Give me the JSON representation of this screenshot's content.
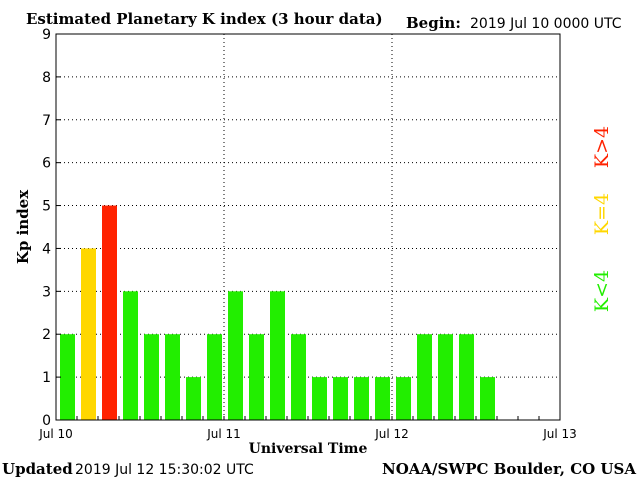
{
  "header": {
    "title": "Estimated Planetary K index (3 hour data)",
    "begin_label": "Begin:",
    "begin_value": "2019 Jul 10 0000 UTC"
  },
  "footer": {
    "updated_label": "Updated",
    "updated_value": "2019 Jul 12 15:30:02 UTC",
    "source": "NOAA/SWPC Boulder, CO USA"
  },
  "legend": {
    "low": "K<4",
    "mid": "K=4",
    "high": "K>4"
  },
  "colors": {
    "low": "#22ee00",
    "mid": "#ffd700",
    "high": "#ff2200"
  },
  "chart_data": {
    "type": "bar",
    "title": "Estimated Planetary K index (3 hour data)",
    "xlabel": "Universal Time",
    "ylabel": "Kp index",
    "ylim": [
      0,
      9
    ],
    "yticks": [
      0,
      1,
      2,
      3,
      4,
      5,
      6,
      7,
      8,
      9
    ],
    "x_tick_labels": [
      "Jul 10",
      "Jul 11",
      "Jul 12",
      "Jul 13"
    ],
    "grid": "dotted at day boundaries and integer Kp",
    "interval_hours": 3,
    "values": [
      2,
      4,
      5,
      3,
      2,
      2,
      1,
      2,
      3,
      2,
      3,
      2,
      1,
      1,
      1,
      1,
      1,
      2,
      2,
      2,
      1
    ]
  }
}
